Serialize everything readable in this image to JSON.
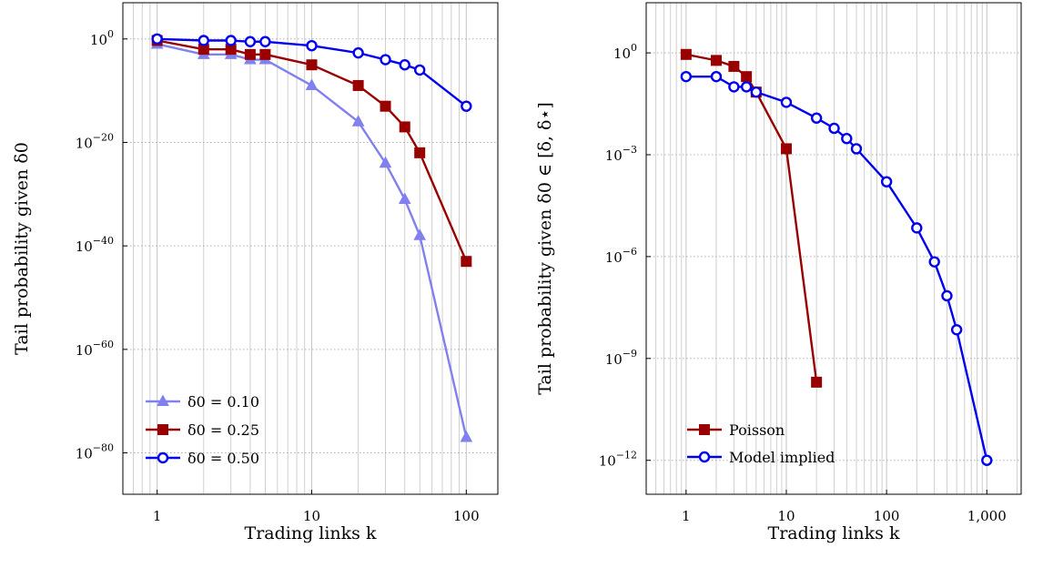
{
  "chart_data": [
    {
      "type": "line",
      "xscale": "log",
      "yscale": "log",
      "xlabel": "Trading links k",
      "ylabel": "Tail probability given δ0",
      "xlim": [
        0.6,
        160
      ],
      "ylim": [
        1e-88,
        10000000.0
      ],
      "xticks": [
        {
          "value": 1,
          "label": "1"
        },
        {
          "value": 10,
          "label": "10"
        },
        {
          "value": 100,
          "label": "100"
        }
      ],
      "yticks": [
        {
          "value": 1,
          "base": "10",
          "exp": "0"
        },
        {
          "value": 1e-20,
          "base": "10",
          "exp": "−20"
        },
        {
          "value": 1e-40,
          "base": "10",
          "exp": "−40"
        },
        {
          "value": 1e-60,
          "base": "10",
          "exp": "−60"
        },
        {
          "value": 1e-80,
          "base": "10",
          "exp": "−80"
        }
      ],
      "grid": true,
      "legend_position": "bottom-left",
      "series": [
        {
          "name": "δ0 = 0.10",
          "color": "#8080ee",
          "marker": "triangle",
          "x": [
            1,
            2,
            3,
            4,
            5,
            10,
            20,
            30,
            40,
            50,
            100
          ],
          "y": [
            0.1,
            0.001,
            0.001,
            0.0001,
            0.0001,
            1e-09,
            1e-16,
            1e-24,
            1e-31,
            1e-38,
            1e-77
          ]
        },
        {
          "name": "δ0 = 0.25",
          "color": "#990000",
          "marker": "square",
          "x": [
            1,
            2,
            3,
            4,
            5,
            10,
            20,
            30,
            40,
            50,
            100
          ],
          "y": [
            0.5,
            0.01,
            0.01,
            0.001,
            0.001,
            1e-05,
            1e-09,
            1e-13,
            1e-17,
            1e-22,
            1e-43
          ]
        },
        {
          "name": "δ0 = 0.50",
          "color": "#0000ee",
          "marker": "circle",
          "x": [
            1,
            2,
            3,
            4,
            5,
            10,
            20,
            30,
            40,
            50,
            100
          ],
          "y": [
            1,
            0.5,
            0.5,
            0.3,
            0.3,
            0.05,
            0.002,
            0.0001,
            1e-05,
            1e-06,
            1e-13
          ]
        }
      ]
    },
    {
      "type": "line",
      "xscale": "log",
      "yscale": "log",
      "xlabel": "Trading links k",
      "ylabel": "Tail probability given δ0 ∈ [δ, δ⋆]",
      "xlim": [
        0.4,
        2200
      ],
      "ylim": [
        1e-13,
        30
      ],
      "xticks": [
        {
          "value": 1,
          "label": "1"
        },
        {
          "value": 10,
          "label": "10"
        },
        {
          "value": 100,
          "label": "100"
        },
        {
          "value": 1000,
          "label": "1,000"
        }
      ],
      "yticks": [
        {
          "value": 1,
          "base": "10",
          "exp": "0"
        },
        {
          "value": 0.001,
          "base": "10",
          "exp": "−3"
        },
        {
          "value": 1e-06,
          "base": "10",
          "exp": "−6"
        },
        {
          "value": 1e-09,
          "base": "10",
          "exp": "−9"
        },
        {
          "value": 1e-12,
          "base": "10",
          "exp": "−12"
        }
      ],
      "grid": true,
      "legend_position": "bottom-left",
      "series": [
        {
          "name": "Poisson",
          "color": "#990000",
          "marker": "square",
          "x": [
            1,
            2,
            3,
            4,
            5,
            10,
            20
          ],
          "y": [
            0.9,
            0.6,
            0.4,
            0.2,
            0.07,
            0.0015,
            2e-10
          ]
        },
        {
          "name": "Model implied",
          "color": "#0000ee",
          "marker": "circle",
          "x": [
            1,
            2,
            3,
            4,
            5,
            10,
            20,
            30,
            40,
            50,
            100,
            200,
            300,
            400,
            500,
            1000
          ],
          "y": [
            0.2,
            0.2,
            0.1,
            0.1,
            0.07,
            0.035,
            0.012,
            0.006,
            0.003,
            0.0015,
            0.00016,
            7e-06,
            7e-07,
            7e-08,
            7e-09,
            1e-12
          ]
        }
      ]
    }
  ]
}
